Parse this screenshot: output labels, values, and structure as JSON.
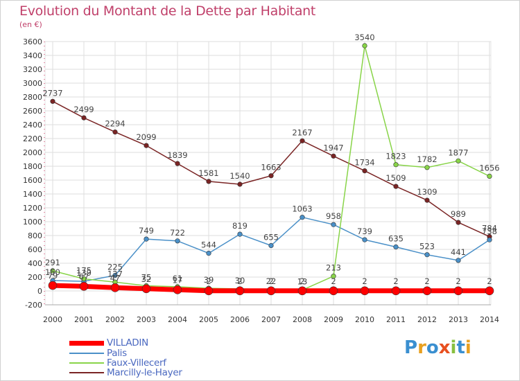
{
  "title": "Evolution du Montant de la Dette par Habitant",
  "subtitle": "(en €)",
  "logo": {
    "text": "Proxiti"
  },
  "colors": {
    "VILLADIN": "#ff0000",
    "Palis": "#4a90c8",
    "Faux-Villecerf": "#88d448",
    "Marcilly-le-Hayer": "#7a2424",
    "grid": "#dddddd",
    "title": "#c0406a",
    "legend_text": "#4a68c0"
  },
  "chart_data": {
    "type": "line",
    "title": "Evolution du Montant de la Dette par Habitant",
    "ylabel": "(en €)",
    "x": [
      2000,
      2001,
      2002,
      2003,
      2004,
      2005,
      2006,
      2007,
      2008,
      2009,
      2010,
      2011,
      2012,
      2013,
      2014
    ],
    "ylim": [
      -200,
      3600
    ],
    "yticks": [
      -200,
      0,
      200,
      400,
      600,
      800,
      1000,
      1200,
      1400,
      1600,
      1800,
      2000,
      2200,
      2400,
      2600,
      2800,
      3000,
      3200,
      3400,
      3600
    ],
    "grid": true,
    "legend_position": "bottom-left",
    "series": [
      {
        "name": "Marcilly-le-Hayer",
        "values": [
          2737,
          2499,
          2294,
          2099,
          1839,
          1581,
          1540,
          1663,
          2167,
          1947,
          1734,
          1509,
          1309,
          989,
          784
        ],
        "labels": [
          "2737",
          "2499",
          "2294",
          "2099",
          "1839",
          "1581",
          "1540",
          "1663",
          "2167",
          "1947",
          "1734",
          "1509",
          "1309",
          "989",
          "784"
        ]
      },
      {
        "name": "Palis",
        "values": [
          150,
          139,
          225,
          749,
          722,
          544,
          819,
          655,
          1063,
          958,
          739,
          635,
          523,
          441,
          738
        ],
        "labels": [
          "150",
          "139",
          "225",
          "749",
          "722",
          "544",
          "819",
          "655",
          "1063",
          "958",
          "739",
          "635",
          "523",
          "441",
          "738"
        ]
      },
      {
        "name": "Faux-Villecerf",
        "values": [
          291,
          175,
          127,
          75,
          61,
          39,
          30,
          22,
          13,
          213,
          3540,
          1823,
          1782,
          1877,
          1656
        ],
        "labels": [
          "291",
          "175",
          "127",
          "75",
          "61",
          "39",
          "30",
          "22",
          "13",
          "213",
          "3540",
          "1823",
          "1782",
          "1877",
          "1656"
        ]
      },
      {
        "name": "VILLADIN",
        "values": [
          79,
          67,
          47,
          32,
          17,
          2,
          2,
          2,
          2,
          2,
          2,
          2,
          2,
          2,
          2
        ],
        "labels": [
          "79",
          "67",
          "47",
          "32",
          "17",
          "2",
          "2",
          "2",
          "2",
          "2",
          "2",
          "2",
          "2",
          "2",
          "2"
        ]
      }
    ]
  }
}
